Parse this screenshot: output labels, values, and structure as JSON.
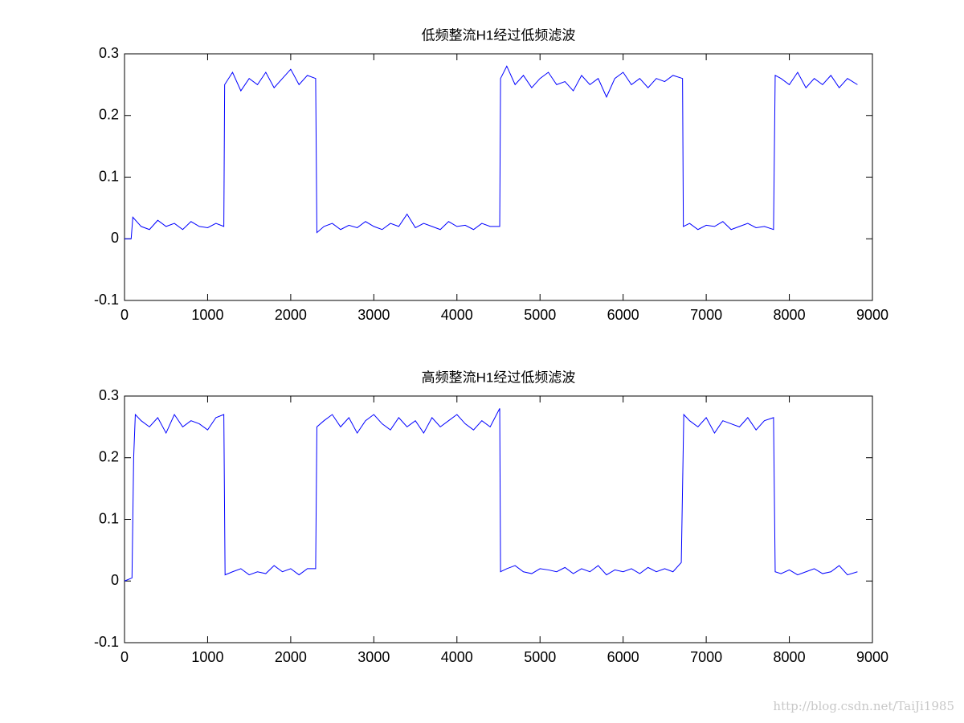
{
  "chart_data": [
    {
      "type": "line",
      "title": "低频整流H1经过低频滤波",
      "x": [
        0,
        80,
        100,
        200,
        300,
        400,
        500,
        600,
        700,
        800,
        900,
        1000,
        1100,
        1195,
        1205,
        1300,
        1400,
        1500,
        1600,
        1700,
        1800,
        1900,
        2000,
        2100,
        2200,
        2300,
        2315,
        2400,
        2500,
        2600,
        2700,
        2800,
        2900,
        3000,
        3100,
        3200,
        3300,
        3400,
        3500,
        3600,
        3700,
        3800,
        3900,
        4000,
        4100,
        4200,
        4300,
        4400,
        4515,
        4525,
        4600,
        4700,
        4800,
        4900,
        5000,
        5100,
        5200,
        5300,
        5400,
        5500,
        5600,
        5700,
        5800,
        5900,
        6000,
        6100,
        6200,
        6300,
        6400,
        6500,
        6600,
        6715,
        6725,
        6800,
        6900,
        7000,
        7100,
        7200,
        7300,
        7400,
        7500,
        7600,
        7700,
        7810,
        7830,
        7900,
        8000,
        8100,
        8200,
        8300,
        8400,
        8500,
        8600,
        8700,
        8820
      ],
      "series": [
        {
          "color": "#0000ff",
          "values": [
            0,
            0,
            0.035,
            0.02,
            0.015,
            0.03,
            0.02,
            0.025,
            0.015,
            0.028,
            0.02,
            0.018,
            0.025,
            0.02,
            0.25,
            0.27,
            0.24,
            0.26,
            0.25,
            0.27,
            0.245,
            0.26,
            0.275,
            0.25,
            0.265,
            0.26,
            0.01,
            0.02,
            0.025,
            0.015,
            0.022,
            0.018,
            0.028,
            0.02,
            0.015,
            0.025,
            0.02,
            0.04,
            0.018,
            0.025,
            0.02,
            0.015,
            0.028,
            0.02,
            0.022,
            0.015,
            0.025,
            0.02,
            0.02,
            0.26,
            0.28,
            0.25,
            0.265,
            0.245,
            0.26,
            0.27,
            0.25,
            0.255,
            0.24,
            0.265,
            0.25,
            0.26,
            0.23,
            0.26,
            0.27,
            0.25,
            0.26,
            0.245,
            0.26,
            0.255,
            0.265,
            0.26,
            0.02,
            0.025,
            0.015,
            0.022,
            0.02,
            0.028,
            0.015,
            0.02,
            0.025,
            0.018,
            0.02,
            0.015,
            0.265,
            0.26,
            0.25,
            0.27,
            0.245,
            0.26,
            0.25,
            0.265,
            0.245,
            0.26,
            0.25
          ]
        }
      ],
      "xlim": [
        0,
        9000
      ],
      "xticks": [
        0,
        1000,
        2000,
        3000,
        4000,
        5000,
        6000,
        7000,
        8000,
        9000
      ],
      "ylim": [
        -0.1,
        0.3
      ],
      "yticks": [
        -0.1,
        0,
        0.1,
        0.2,
        0.3
      ]
    },
    {
      "type": "line",
      "title": "高频整流H1经过低频滤波",
      "x": [
        0,
        90,
        110,
        130,
        200,
        300,
        400,
        500,
        600,
        700,
        800,
        900,
        1000,
        1100,
        1195,
        1210,
        1300,
        1400,
        1500,
        1600,
        1700,
        1800,
        1900,
        2000,
        2100,
        2200,
        2300,
        2315,
        2400,
        2500,
        2600,
        2700,
        2800,
        2900,
        3000,
        3100,
        3200,
        3300,
        3400,
        3500,
        3600,
        3700,
        3800,
        3900,
        4000,
        4100,
        4200,
        4300,
        4400,
        4515,
        4525,
        4600,
        4700,
        4800,
        4900,
        5000,
        5100,
        5200,
        5300,
        5400,
        5500,
        5600,
        5700,
        5800,
        5900,
        6000,
        6100,
        6200,
        6300,
        6400,
        6500,
        6600,
        6700,
        6730,
        6800,
        6900,
        7000,
        7100,
        7200,
        7300,
        7400,
        7500,
        7600,
        7700,
        7810,
        7830,
        7900,
        8000,
        8100,
        8200,
        8300,
        8400,
        8500,
        8600,
        8700,
        8820
      ],
      "series": [
        {
          "color": "#0000ff",
          "values": [
            0,
            0.005,
            0.2,
            0.27,
            0.26,
            0.25,
            0.265,
            0.24,
            0.27,
            0.25,
            0.26,
            0.255,
            0.245,
            0.265,
            0.27,
            0.01,
            0.015,
            0.02,
            0.01,
            0.015,
            0.012,
            0.025,
            0.015,
            0.02,
            0.01,
            0.02,
            0.02,
            0.25,
            0.26,
            0.27,
            0.25,
            0.265,
            0.24,
            0.26,
            0.27,
            0.255,
            0.245,
            0.265,
            0.25,
            0.26,
            0.24,
            0.265,
            0.25,
            0.26,
            0.27,
            0.255,
            0.245,
            0.26,
            0.25,
            0.28,
            0.015,
            0.02,
            0.025,
            0.015,
            0.012,
            0.02,
            0.018,
            0.015,
            0.022,
            0.012,
            0.02,
            0.015,
            0.025,
            0.01,
            0.018,
            0.015,
            0.02,
            0.012,
            0.022,
            0.015,
            0.02,
            0.015,
            0.03,
            0.27,
            0.26,
            0.25,
            0.265,
            0.24,
            0.26,
            0.255,
            0.25,
            0.265,
            0.245,
            0.26,
            0.265,
            0.015,
            0.012,
            0.018,
            0.01,
            0.015,
            0.02,
            0.012,
            0.015,
            0.025,
            0.01,
            0.015
          ]
        }
      ],
      "xlim": [
        0,
        9000
      ],
      "xticks": [
        0,
        1000,
        2000,
        3000,
        4000,
        5000,
        6000,
        7000,
        8000,
        9000
      ],
      "ylim": [
        -0.1,
        0.3
      ],
      "yticks": [
        -0.1,
        0,
        0.1,
        0.2,
        0.3
      ]
    }
  ],
  "watermark": "http://blog.csdn.net/TaiJi1985"
}
